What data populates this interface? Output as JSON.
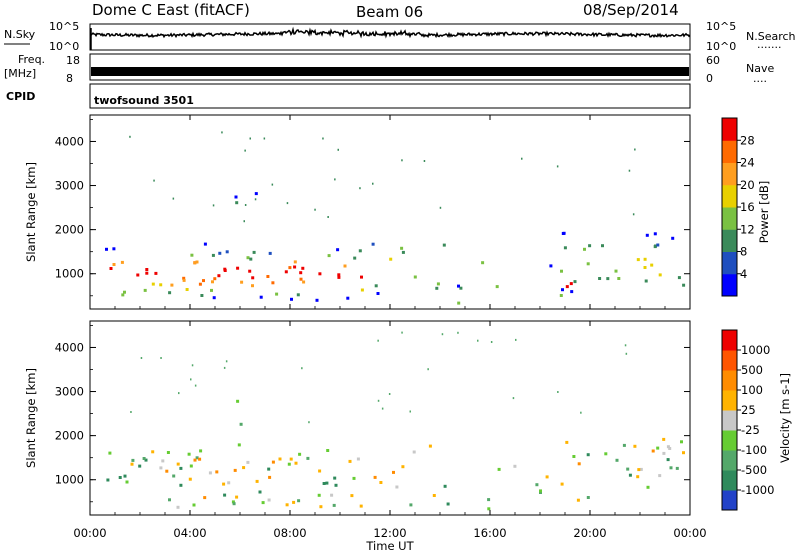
{
  "header": {
    "title": "Dome C East (fitACF)",
    "beam": "Beam 06",
    "date": "08/Sep/2014"
  },
  "nsky_panel": {
    "left_label": "N.Sky",
    "right_label": "N.Search",
    "left_ticks": [
      "10^5",
      "10^0"
    ],
    "right_ticks": [
      "10^5",
      "10^0"
    ],
    "right_marker": "......."
  },
  "freq_panel": {
    "left_label_line1": "Freq.",
    "left_label_line2": "[MHz]",
    "right_label": "Nave",
    "left_ticks": [
      "18",
      "8"
    ],
    "right_ticks": [
      "60",
      "0"
    ],
    "right_marker": "...."
  },
  "cpid_panel": {
    "label": "CPID",
    "program": "twofsound 3501"
  },
  "time_axis": {
    "label": "Time UT",
    "ticks": [
      "00:00",
      "04:00",
      "08:00",
      "12:00",
      "16:00",
      "20:00",
      "00:00"
    ]
  },
  "chart_data": [
    {
      "type": "heatmap",
      "name": "power",
      "ylabel": "Slant Range [km]",
      "x_range_hours": [
        0,
        24
      ],
      "ylim": [
        200,
        4600
      ],
      "y_ticks": [
        "1000",
        "2000",
        "3000",
        "4000"
      ],
      "colorbar_label": "Power [dB]",
      "colorbar_ticks": [
        "4",
        "8",
        "12",
        "16",
        "20",
        "24",
        "28"
      ],
      "colorbar_colors": [
        "#0000ff",
        "#1f4fbf",
        "#3a8a5a",
        "#7ac142",
        "#e8d000",
        "#ff9e1f",
        "#ff6a00",
        "#ee0000"
      ]
    },
    {
      "type": "heatmap",
      "name": "velocity",
      "ylabel": "Slant Range [km]",
      "x_range_hours": [
        0,
        24
      ],
      "ylim": [
        200,
        4600
      ],
      "y_ticks": [
        "1000",
        "2000",
        "3000",
        "4000"
      ],
      "colorbar_label": "Velocity [m s-1]",
      "colorbar_ticks": [
        "1000",
        "500",
        "100",
        "25",
        "-25",
        "-100",
        "-500",
        "-1000"
      ],
      "colorbar_colors": [
        "#2242c8",
        "#2f8a5c",
        "#54a86a",
        "#66cc33",
        "#c8c8c8",
        "#ffb300",
        "#ff8c00",
        "#ff5500",
        "#ee0000"
      ]
    }
  ]
}
